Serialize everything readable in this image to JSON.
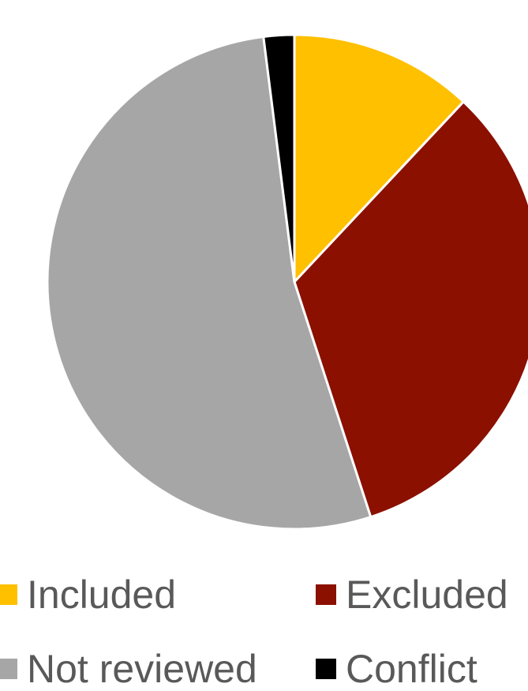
{
  "chart_data": {
    "type": "pie",
    "title": "",
    "categories": [
      "Included",
      "Excluded",
      "Not reviewed",
      "Conflict"
    ],
    "values": [
      12.0,
      33.0,
      53.0,
      2.0
    ],
    "colors": [
      "#FFC000",
      "#8B1000",
      "#A6A6A6",
      "#000000"
    ],
    "legend_position": "bottom"
  },
  "legend": {
    "included": "Included",
    "excluded": "Excluded",
    "not_reviewed": "Not reviewed",
    "conflict": "Conflict"
  }
}
